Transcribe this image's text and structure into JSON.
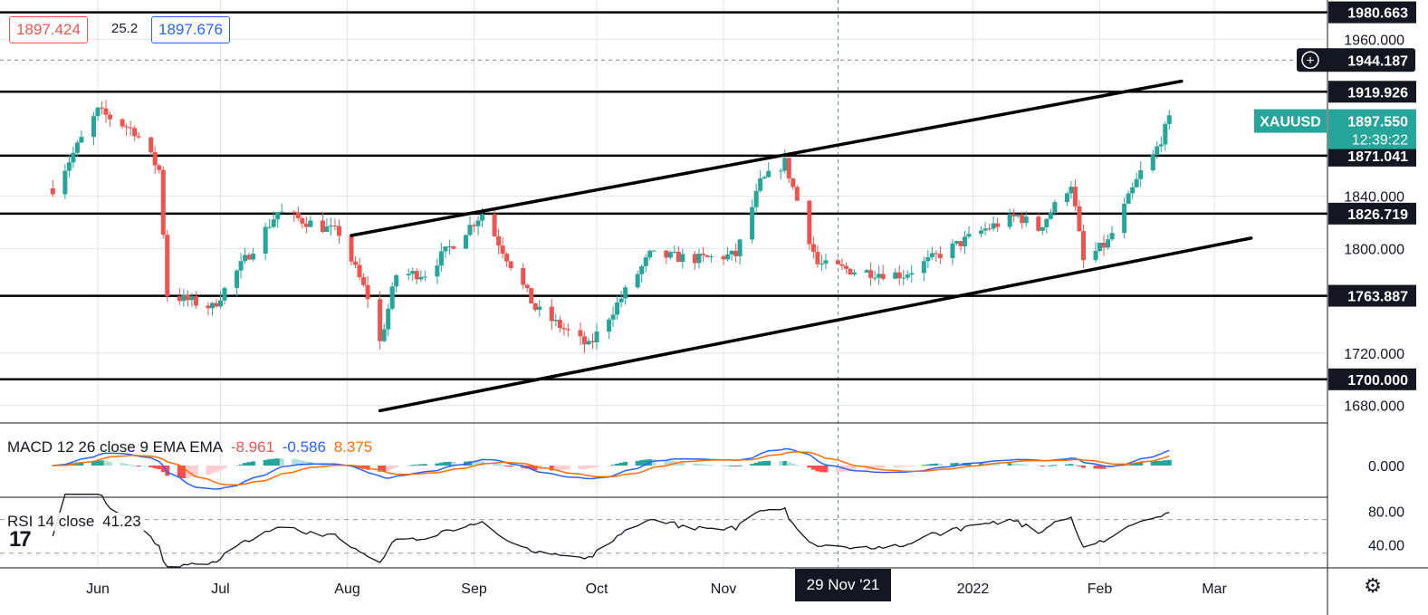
{
  "header": {
    "bid": "1897.424",
    "spread": "25.2",
    "ask": "1897.676"
  },
  "indicators": {
    "macd": {
      "name": "MACD 12 26 close 9 EMA EMA",
      "hist": "-8.961",
      "macd": "-0.586",
      "signal": "8.375"
    },
    "rsi": {
      "name": "RSI 14 close",
      "value": "41.23"
    }
  },
  "crosshair_date": "29 Nov '21",
  "colors": {
    "up": "#26a69a",
    "down": "#ef5350",
    "macd": "#2962ff",
    "signal": "#ff6d00",
    "rsi": "#131722",
    "line": "#000000"
  },
  "chart_data": {
    "type": "candlestick",
    "symbol": "XAUUSD",
    "last_price": "1897.550",
    "countdown": "12:39:22",
    "crosshair_price": "1944.187",
    "ylim": [
      1668,
      1988
    ],
    "y_ticks": [
      "1960.000",
      "1840.000",
      "1800.000",
      "1720.000",
      "1680.000"
    ],
    "x_tick_labels": [
      "Jun",
      "Jul",
      "Aug",
      "Sep",
      "Oct",
      "Nov",
      "2022",
      "Feb",
      "Mar"
    ],
    "horizontal_levels": [
      "1980.663",
      "1919.926",
      "1871.041",
      "1826.719",
      "1763.887",
      "1700.000"
    ],
    "trend_channel": {
      "upper": [
        [
          "2021-08-02",
          1810
        ],
        [
          "2022-02-21",
          1928
        ]
      ],
      "lower": [
        [
          "2021-08-09",
          1676
        ],
        [
          "2022-03-10",
          1808
        ]
      ]
    },
    "macd_ticks": [
      "0.000"
    ],
    "rsi_ticks": [
      "80.00",
      "40.00"
    ],
    "rsi_bands": [
      70,
      30
    ],
    "anchors": [
      [
        "2021-05-21",
        1846
      ],
      [
        "2021-06-01",
        1905
      ],
      [
        "2021-06-10",
        1890
      ],
      [
        "2021-06-16",
        1860
      ],
      [
        "2021-06-18",
        1765
      ],
      [
        "2021-06-29",
        1755
      ],
      [
        "2021-07-15",
        1828
      ],
      [
        "2021-07-30",
        1812
      ],
      [
        "2021-08-06",
        1763
      ],
      [
        "2021-08-09",
        1728
      ],
      [
        "2021-08-13",
        1780
      ],
      [
        "2021-08-20",
        1781
      ],
      [
        "2021-09-03",
        1827
      ],
      [
        "2021-09-10",
        1788
      ],
      [
        "2021-09-16",
        1754
      ],
      [
        "2021-09-29",
        1725
      ],
      [
        "2021-10-14",
        1795
      ],
      [
        "2021-10-26",
        1792
      ],
      [
        "2021-11-04",
        1795
      ],
      [
        "2021-11-10",
        1850
      ],
      [
        "2021-11-16",
        1866
      ],
      [
        "2021-11-24",
        1788
      ],
      [
        "2021-12-03",
        1783
      ],
      [
        "2021-12-15",
        1780
      ],
      [
        "2022-01-04",
        1815
      ],
      [
        "2022-01-12",
        1825
      ],
      [
        "2022-01-17",
        1815
      ],
      [
        "2022-01-25",
        1850
      ],
      [
        "2022-01-28",
        1790
      ],
      [
        "2022-02-03",
        1805
      ],
      [
        "2022-02-11",
        1858
      ],
      [
        "2022-02-14",
        1870
      ],
      [
        "2022-02-18",
        1898
      ]
    ]
  }
}
